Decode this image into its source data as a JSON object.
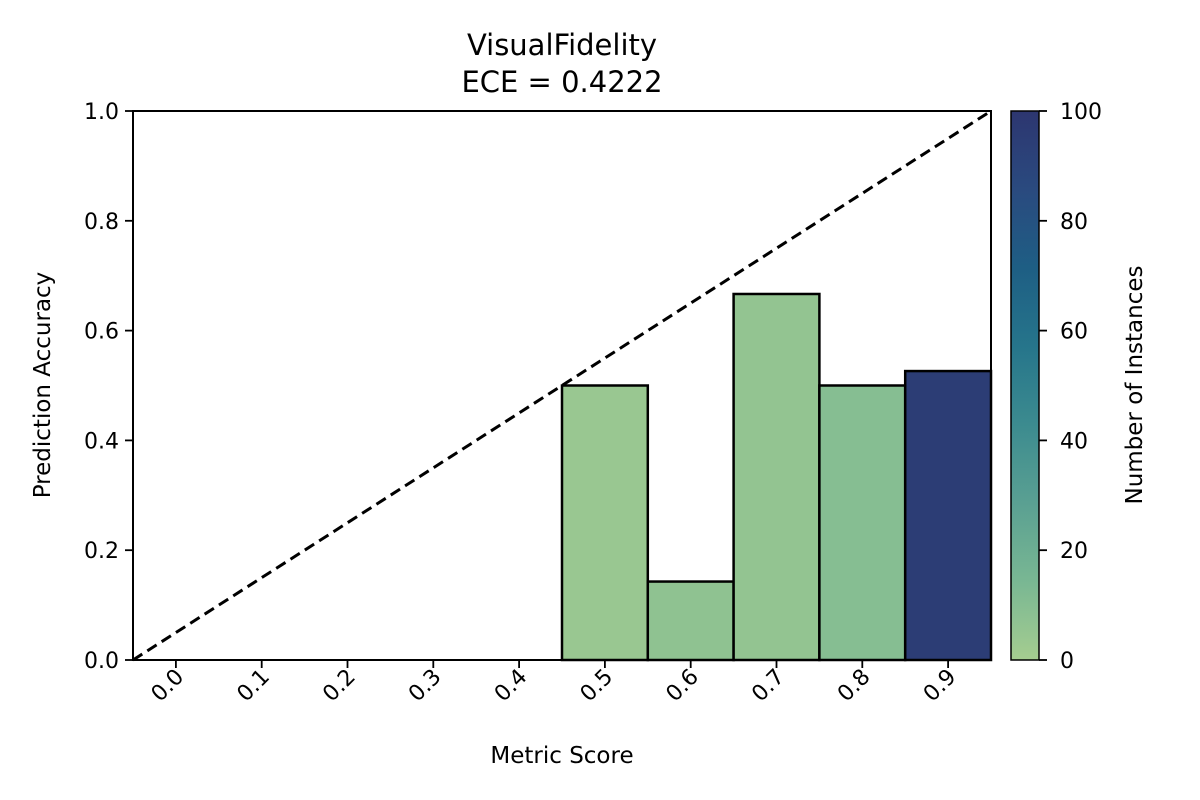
{
  "chart_data": {
    "type": "bar",
    "title": "VisualFidelity",
    "subtitle": "ECE = 0.4222",
    "xlabel": "Metric Score",
    "ylabel": "Prediction Accuracy",
    "categories": [
      "0.0",
      "0.1",
      "0.2",
      "0.3",
      "0.4",
      "0.5",
      "0.6",
      "0.7",
      "0.8",
      "0.9"
    ],
    "x": [
      0.0,
      0.1,
      0.2,
      0.3,
      0.4,
      0.5,
      0.6,
      0.7,
      0.8,
      0.9
    ],
    "values": [
      null,
      null,
      null,
      null,
      null,
      0.5,
      0.1429,
      0.6667,
      0.5,
      0.5263
    ],
    "instance_counts": [
      0,
      0,
      0,
      0,
      0,
      4,
      7,
      6,
      10,
      95
    ],
    "bin_width": 0.1,
    "xlim": [
      -0.05,
      0.95
    ],
    "ylim": [
      0.0,
      1.0
    ],
    "yticks": [
      "0.0",
      "0.2",
      "0.4",
      "0.6",
      "0.8",
      "1.0"
    ],
    "ytick_values": [
      0.0,
      0.2,
      0.4,
      0.6,
      0.8,
      1.0
    ],
    "reference_line": {
      "style": "dashed",
      "from": [
        -0.05,
        0.0
      ],
      "to": [
        0.95,
        1.0
      ],
      "color": "#000000"
    },
    "grid": false,
    "colorbar": {
      "label": "Number of Instances",
      "range": [
        0,
        100
      ],
      "ticks": [
        "0",
        "20",
        "40",
        "60",
        "80",
        "100"
      ],
      "tick_values": [
        0,
        20,
        40,
        60,
        80,
        100
      ],
      "colormap": "crest",
      "colors": [
        "#a5cd90",
        "#79b793",
        "#5aa092",
        "#3c8b8f",
        "#26758b",
        "#1e5e84",
        "#2a4a7f",
        "#2d3670"
      ]
    }
  }
}
